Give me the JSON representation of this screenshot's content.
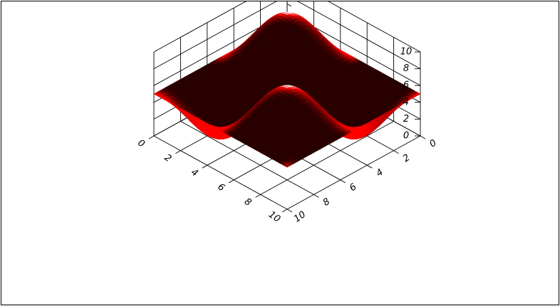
{
  "chart_data": {
    "type": "surface",
    "title": "",
    "xlabel": "",
    "ylabel": "",
    "zlabel": "",
    "x_ticks": [
      "0",
      "2",
      "4",
      "6",
      "8",
      "10"
    ],
    "y_ticks": [
      "0",
      "2",
      "4",
      "6",
      "8",
      "10"
    ],
    "z_ticks": [
      "0",
      "2",
      "4",
      "6",
      "8",
      "10"
    ],
    "xlim": [
      0,
      10
    ],
    "ylim": [
      0,
      10
    ],
    "zlim": [
      0,
      10
    ],
    "grid": true,
    "surface": {
      "function": "z = 5 + 5*sin(2*pi*x/10)*sin(2*pi*y/10)",
      "x_range": [
        0,
        10
      ],
      "y_range": [
        0,
        10
      ],
      "z_min": 0,
      "z_max": 10,
      "peaks": [
        {
          "x": 2.5,
          "y": 2.5,
          "z": 10
        },
        {
          "x": 7.5,
          "y": 7.5,
          "z": 10
        }
      ],
      "troughs": [
        {
          "x": 2.5,
          "y": 7.5,
          "z": 0
        },
        {
          "x": 7.5,
          "y": 2.5,
          "z": 0
        }
      ]
    },
    "colors": {
      "surface_base": "#ff0000",
      "highlight": "#ffffff",
      "shadow": "#000000"
    }
  }
}
